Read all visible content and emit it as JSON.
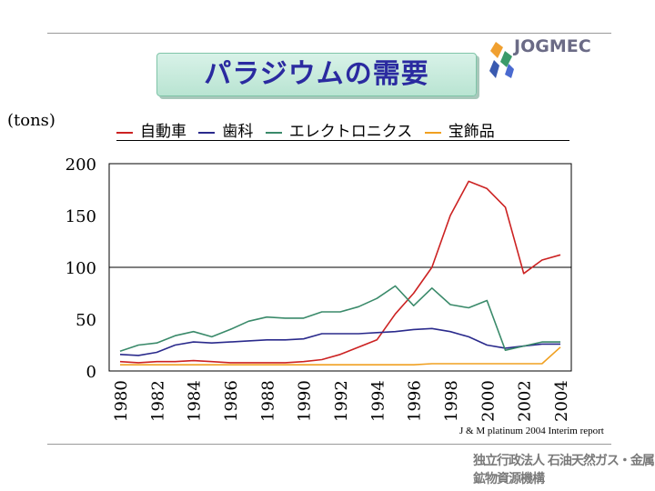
{
  "slide": {
    "title": "パラジウムの需要",
    "unit_label": "(tons)",
    "logo_text": "JOGMEC",
    "source": "J & M platinum 2004 Interim report",
    "organization": "独立行政法人 石油天然ガス・金属鉱物資源機構"
  },
  "chart_data": {
    "type": "line",
    "title": "パラジウムの需要",
    "ylabel": "(tons)",
    "xlabel": "",
    "ylim": [
      0,
      200
    ],
    "yticks": [
      0,
      50,
      100,
      150,
      200
    ],
    "grid": false,
    "reference_line": 100,
    "legend_position": "top",
    "x": [
      1980,
      1981,
      1982,
      1983,
      1984,
      1985,
      1986,
      1987,
      1988,
      1989,
      1990,
      1991,
      1992,
      1993,
      1994,
      1995,
      1996,
      1997,
      1998,
      1999,
      2000,
      2001,
      2002,
      2003,
      2004
    ],
    "xtick_labels": [
      "1980",
      "1982",
      "1984",
      "1986",
      "1988",
      "1990",
      "1992",
      "1994",
      "1996",
      "1998",
      "2000",
      "2002",
      "2004"
    ],
    "series": [
      {
        "name": "自動車",
        "color": "#cc2222",
        "values": [
          9,
          8,
          9,
          9,
          10,
          9,
          8,
          8,
          8,
          8,
          9,
          11,
          16,
          23,
          30,
          55,
          75,
          100,
          150,
          183,
          176,
          158,
          94,
          107,
          112
        ]
      },
      {
        "name": "歯科",
        "color": "#2a2a8c",
        "values": [
          16,
          15,
          18,
          25,
          28,
          27,
          28,
          29,
          30,
          30,
          31,
          36,
          36,
          36,
          37,
          38,
          40,
          41,
          38,
          33,
          25,
          22,
          24,
          26,
          26
        ]
      },
      {
        "name": "エレクトロニクス",
        "color": "#3a8a6a",
        "values": [
          19,
          25,
          27,
          34,
          38,
          33,
          40,
          48,
          52,
          51,
          51,
          57,
          57,
          62,
          70,
          82,
          63,
          80,
          64,
          61,
          68,
          20,
          24,
          28,
          28
        ]
      },
      {
        "name": "宝飾品",
        "color": "#f0a020",
        "values": [
          6,
          6,
          6,
          6,
          6,
          6,
          6,
          6,
          6,
          6,
          6,
          6,
          6,
          6,
          6,
          6,
          6,
          7,
          7,
          7,
          7,
          7,
          7,
          7,
          23
        ]
      }
    ]
  }
}
